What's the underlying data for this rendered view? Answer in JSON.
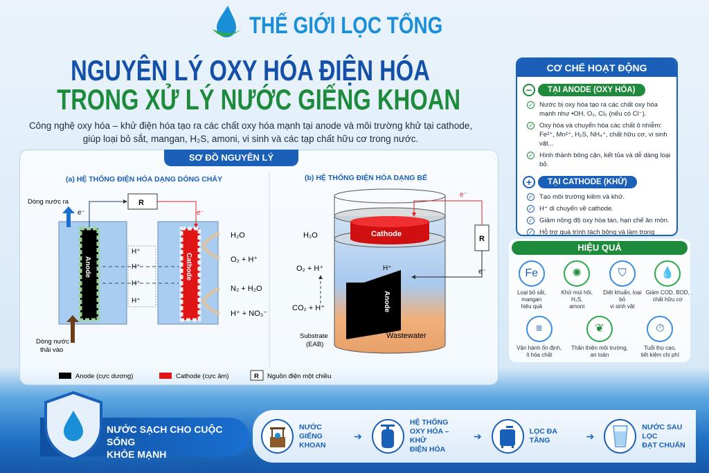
{
  "brand": "THẾ GIỚI LỌC TỔNG",
  "title": {
    "line1": "NGUYÊN LÝ OXY HÓA ĐIỆN HÓA",
    "line2": "TRONG XỬ LÝ NƯỚC GIẾNG KHOAN"
  },
  "subtitle": {
    "line1": "Công nghệ oxy hóa – khử điện hóa tạo ra các chất oxy hóa mạnh tại anode và môi trường khử tại cathode,",
    "line2": "giúp loại bỏ sắt, mangan, H₂S, amoni, vi sinh và các tạp chất hữu cơ trong nước."
  },
  "diagram": {
    "tab": "SƠ ĐỒ NGUYÊN LÝ",
    "a": {
      "title": "(a) HỆ THỐNG ĐIỆN HÓA DẠNG DÒNG CHẢY",
      "outflow": "Dòng nước ra",
      "inflow1": "Dòng nước",
      "inflow2": "thải vào",
      "e": "e⁻",
      "r": "R",
      "anode": "Anode",
      "cathode": "Cathode",
      "h": "H⁺",
      "p1": "H₂O",
      "p2": "O₂ + H⁺",
      "p3": "N₂ + H₂O",
      "p4": "H⁺ + NO₃⁻"
    },
    "b": {
      "title": "(b) HỆ THỐNG ĐIỆN HÓA DẠNG BỂ",
      "e": "e⁻",
      "r": "R",
      "cathode": "Cathode",
      "anode": "Anode",
      "h2o": "H₂O",
      "o2": "O₂ + H⁺",
      "h": "H⁺",
      "co2": "CO₂ + H⁺",
      "substrate1": "Substrate",
      "substrate2": "(EAB)",
      "wastewater": "Wastewater"
    },
    "legend": {
      "anode": "Anode (cực dương)",
      "cathode": "Cathode (cực âm)",
      "r": "R",
      "source": "Nguồn điện một chiều"
    }
  },
  "mechanism": {
    "title": "CƠ CHẾ HOẠT ĐỘNG",
    "anode": {
      "label": "TẠI ANODE (OXY HÓA)",
      "items": [
        "Nước bị oxy hóa tạo ra các chất oxy hóa mạnh như •OH, O₂, Cl₂ (nếu có Cl⁻).",
        "Oxy hóa và chuyển hóa các chất ô nhiễm: Fe²⁺, Mn²⁺, H₂S, NH₄⁺, chất hữu cơ, vi sinh vật...",
        "Hình thành bông cặn, kết tủa và dễ dàng loại bỏ."
      ]
    },
    "cathode": {
      "label": "TẠI CATHODE (KHỬ)",
      "items": [
        "Tạo môi trường kiềm và khử.",
        "H⁺ di chuyển về cathode.",
        "Giảm nồng độ oxy hòa tan, hạn chế ăn mòn.",
        "Hỗ trợ quá trình tách bông và làm trong nước."
      ]
    },
    "colors": {
      "anode": "#1e8a3c",
      "cathode": "#1a5fb8"
    }
  },
  "effects": {
    "title": "HIỆU QUẢ",
    "row1": [
      {
        "icon": "fe-mn-icon",
        "glyph": "Fe",
        "label1": "Loại bỏ sắt, mangan",
        "label2": "hiệu quả"
      },
      {
        "icon": "odor-icon",
        "glyph": "✺",
        "label1": "Khử mùi hôi, H₂S,",
        "label2": "amoni"
      },
      {
        "icon": "shield-icon",
        "glyph": "⛉",
        "label1": "Diệt khuẩn, loại bỏ",
        "label2": "vi sinh vật"
      },
      {
        "icon": "drop-icon",
        "glyph": "💧",
        "label1": "Giảm COD, BOD,",
        "label2": "chất hữu cơ"
      }
    ],
    "row2": [
      {
        "icon": "coins-icon",
        "glyph": "≡",
        "label1": "Vận hành ổn định,",
        "label2": "ít hóa chất"
      },
      {
        "icon": "leaf-icon",
        "glyph": "❦",
        "label1": "Thân thiện môi trường,",
        "label2": "an toàn"
      },
      {
        "icon": "clock-icon",
        "glyph": "⏱",
        "label1": "Tuổi thọ cao,",
        "label2": "tiết kiệm chi phí"
      }
    ]
  },
  "banner": {
    "line1": "NƯỚC SẠCH CHO CUỘC SỐNG",
    "line2": "KHỎE MẠNH"
  },
  "process": [
    {
      "icon": "well-icon",
      "lines": [
        "NƯỚC GIẾNG",
        "KHOAN",
        ""
      ]
    },
    {
      "icon": "tank-icon",
      "lines": [
        "HỆ THỐNG",
        "OXY HÓA – KHỬ",
        "ĐIỆN HÓA"
      ]
    },
    {
      "icon": "filter-icon",
      "lines": [
        "LỌC ĐA TẦNG",
        "",
        ""
      ]
    },
    {
      "icon": "glass-icon",
      "lines": [
        "NƯỚC SAU LỌC",
        "ĐẠT CHUẨN",
        ""
      ]
    }
  ]
}
